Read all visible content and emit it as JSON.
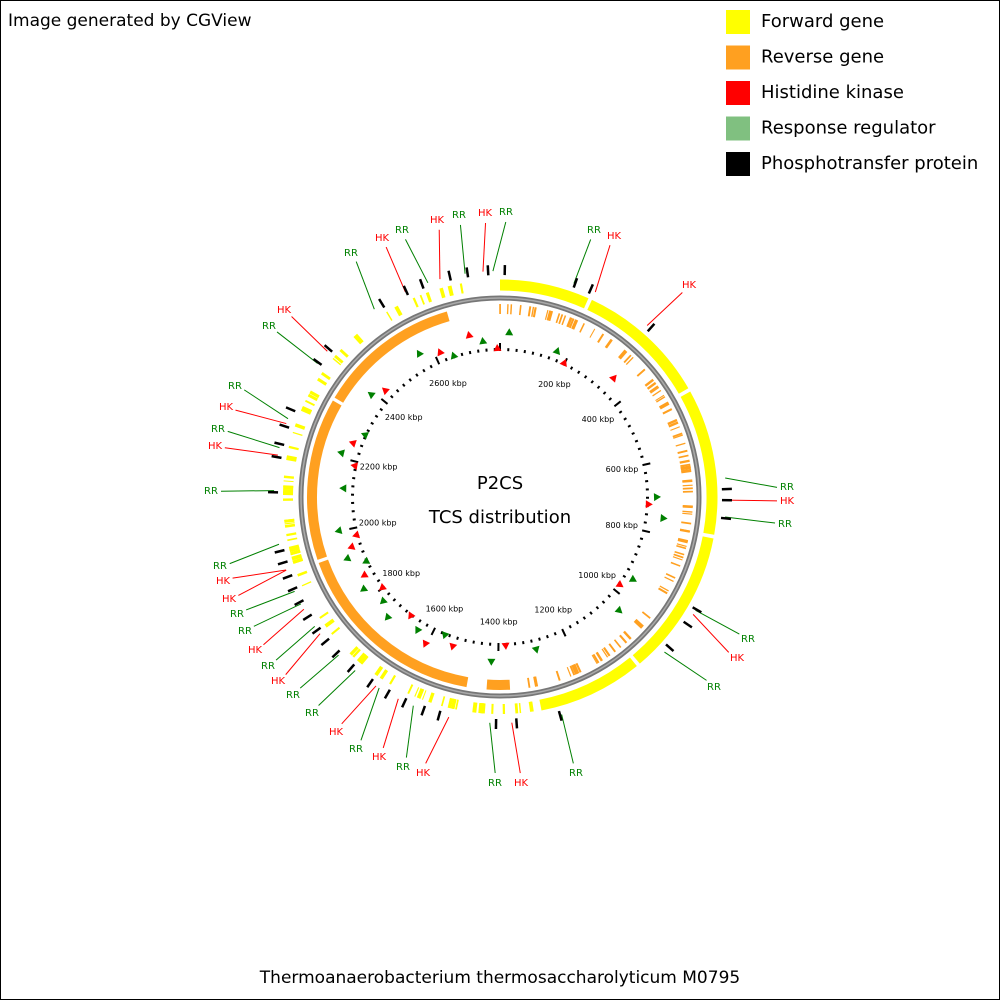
{
  "header": {
    "credit": "Image generated by CGView"
  },
  "legend": [
    {
      "label": "Forward gene",
      "color": "#ffff00"
    },
    {
      "label": "Reverse gene",
      "color": "#ffa020"
    },
    {
      "label": "Histidine kinase",
      "color": "#ff0000"
    },
    {
      "label": "Response regulator",
      "color": "#80c080"
    },
    {
      "label": "Phosphotransfer protein",
      "color": "#000000"
    }
  ],
  "center": {
    "title": "P2CS",
    "subtitle": "TCS distribution"
  },
  "ruler": {
    "labels": [
      "200 kbp",
      "400 kbp",
      "600 kbp",
      "800 kbp",
      "1000 kbp",
      "1200 kbp",
      "1400 kbp",
      "1600 kbp",
      "1800 kbp",
      "2000 kbp",
      "2200 kbp",
      "2400 kbp",
      "2600 kbp"
    ]
  },
  "features": [
    {
      "label": "RR",
      "color": "#008000"
    },
    {
      "label": "HK",
      "color": "#ff0000"
    },
    {
      "label": "RR",
      "color": "#008000"
    },
    {
      "label": "HK",
      "color": "#ff0000"
    },
    {
      "label": "RR",
      "color": "#008000"
    },
    {
      "label": "HK",
      "color": "#ff0000"
    },
    {
      "label": "RR",
      "color": "#008000"
    },
    {
      "label": "RR",
      "color": "#008000"
    },
    {
      "label": "HK",
      "color": "#ff0000"
    },
    {
      "label": "HK",
      "color": "#ff0000"
    },
    {
      "label": "RR",
      "color": "#008000"
    },
    {
      "label": "HK",
      "color": "#ff0000"
    },
    {
      "label": "RR",
      "color": "#008000"
    },
    {
      "label": "RR",
      "color": "#008000"
    },
    {
      "label": "HK",
      "color": "#ff0000"
    },
    {
      "label": "RR",
      "color": "#008000"
    },
    {
      "label": "RR",
      "color": "#008000"
    },
    {
      "label": "HK",
      "color": "#ff0000"
    },
    {
      "label": "RR",
      "color": "#008000"
    },
    {
      "label": "HK",
      "color": "#ff0000"
    },
    {
      "label": "RR",
      "color": "#008000"
    },
    {
      "label": "HK",
      "color": "#ff0000"
    },
    {
      "label": "RR",
      "color": "#008000"
    },
    {
      "label": "HK",
      "color": "#ff0000"
    },
    {
      "label": "RR",
      "color": "#008000"
    },
    {
      "label": "RR",
      "color": "#008000"
    },
    {
      "label": "HK",
      "color": "#ff0000"
    },
    {
      "label": "RR",
      "color": "#008000"
    },
    {
      "label": "HK",
      "color": "#ff0000"
    },
    {
      "label": "RR",
      "color": "#008000"
    },
    {
      "label": "RR",
      "color": "#008000"
    },
    {
      "label": "HK",
      "color": "#ff0000"
    },
    {
      "label": "HK",
      "color": "#ff0000"
    },
    {
      "label": "RR",
      "color": "#008000"
    },
    {
      "label": "RR",
      "color": "#008000"
    },
    {
      "label": "HK",
      "color": "#ff0000"
    },
    {
      "label": "RR",
      "color": "#008000"
    },
    {
      "label": "HK",
      "color": "#ff0000"
    },
    {
      "label": "RR",
      "color": "#008000"
    },
    {
      "label": "RR",
      "color": "#008000"
    },
    {
      "label": "HK",
      "color": "#ff0000"
    }
  ],
  "footer": "Thermoanaerobacterium thermosaccharolyticum M0795"
}
